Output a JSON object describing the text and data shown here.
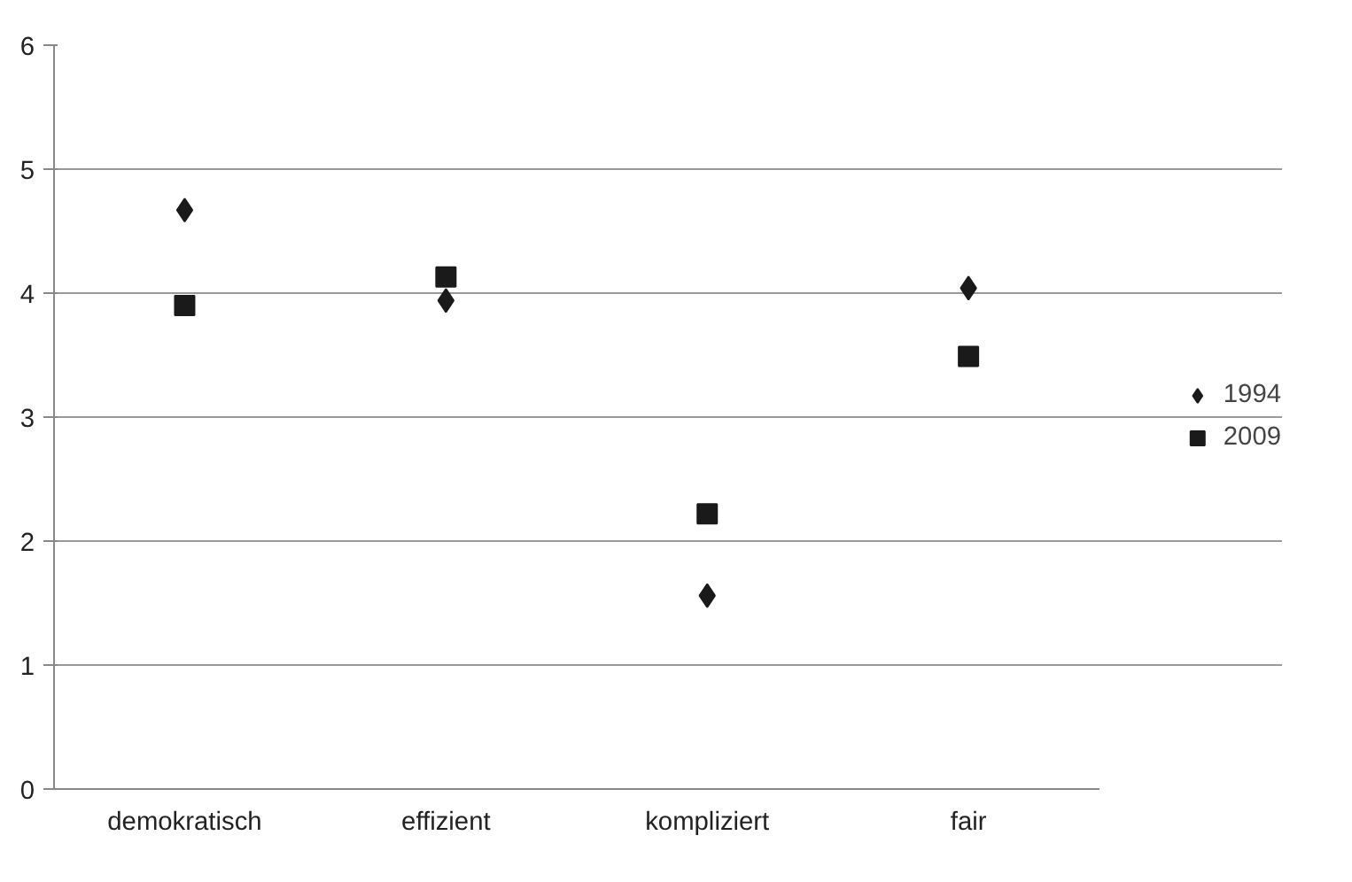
{
  "chart_data": {
    "type": "scatter",
    "categories": [
      "demokratisch",
      "effizient",
      "kompliziert",
      "fair"
    ],
    "series": [
      {
        "name": "1994",
        "color": "#1a1a1a",
        "marker": "diamond",
        "values": [
          4.67,
          3.94,
          1.56,
          4.04
        ]
      },
      {
        "name": "2009",
        "color": "#1a1a1a",
        "marker": "square",
        "values": [
          3.9,
          4.13,
          2.22,
          3.49
        ]
      }
    ],
    "ylim": [
      0,
      6
    ],
    "yticks": [
      0,
      1,
      2,
      3,
      4,
      5,
      6
    ],
    "grid": "y",
    "legend": "right"
  }
}
